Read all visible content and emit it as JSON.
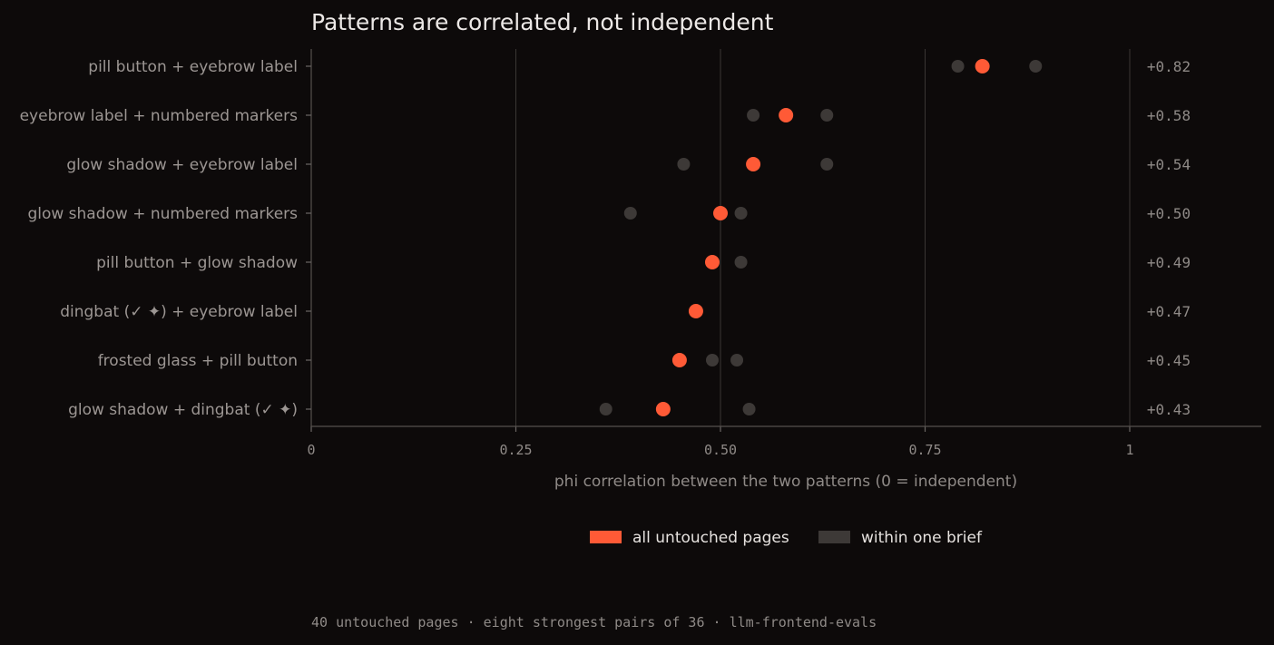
{
  "chart_data": {
    "type": "scatter",
    "title": "Patterns are correlated, not independent",
    "xlabel": "phi correlation between the two patterns  (0 = independent)",
    "xlim": [
      0,
      1
    ],
    "xticks": [
      {
        "value": 0,
        "label": "0"
      },
      {
        "value": 0.25,
        "label": "0.25"
      },
      {
        "value": 0.5,
        "label": "0.50"
      },
      {
        "value": 0.75,
        "label": "0.75"
      },
      {
        "value": 1,
        "label": "1"
      }
    ],
    "grid": true,
    "legend_position": "bottom-center",
    "series": [
      {
        "name": "all untouched pages",
        "color": "#ff5a36"
      },
      {
        "name": "within one brief",
        "color": "#3d3937"
      }
    ],
    "rows": [
      {
        "pair": "pill button  +  eyebrow label",
        "value": 0.82,
        "value_label": "+0.82",
        "brief_values": [
          0.79,
          0.885
        ]
      },
      {
        "pair": "eyebrow label  +  numbered markers",
        "value": 0.58,
        "value_label": "+0.58",
        "brief_values": [
          0.54,
          0.63
        ]
      },
      {
        "pair": "glow shadow  +  eyebrow label",
        "value": 0.54,
        "value_label": "+0.54",
        "brief_values": [
          0.455,
          0.63
        ]
      },
      {
        "pair": "glow shadow  +  numbered markers",
        "value": 0.5,
        "value_label": "+0.50",
        "brief_values": [
          0.39,
          0.525
        ]
      },
      {
        "pair": "pill button  +  glow shadow",
        "value": 0.49,
        "value_label": "+0.49",
        "brief_values": [
          0.525
        ]
      },
      {
        "pair": "dingbat (✓ ✦)  +  eyebrow label",
        "value": 0.47,
        "value_label": "+0.47",
        "brief_values": []
      },
      {
        "pair": "frosted glass  +  pill button",
        "value": 0.45,
        "value_label": "+0.45",
        "brief_values": [
          0.49,
          0.52
        ]
      },
      {
        "pair": "glow shadow  +  dingbat (✓ ✦)",
        "value": 0.43,
        "value_label": "+0.43",
        "brief_values": [
          0.36,
          0.535
        ]
      }
    ]
  },
  "footer": "40 untouched pages  ·  eight strongest pairs of 36  ·  llm-frontend-evals"
}
